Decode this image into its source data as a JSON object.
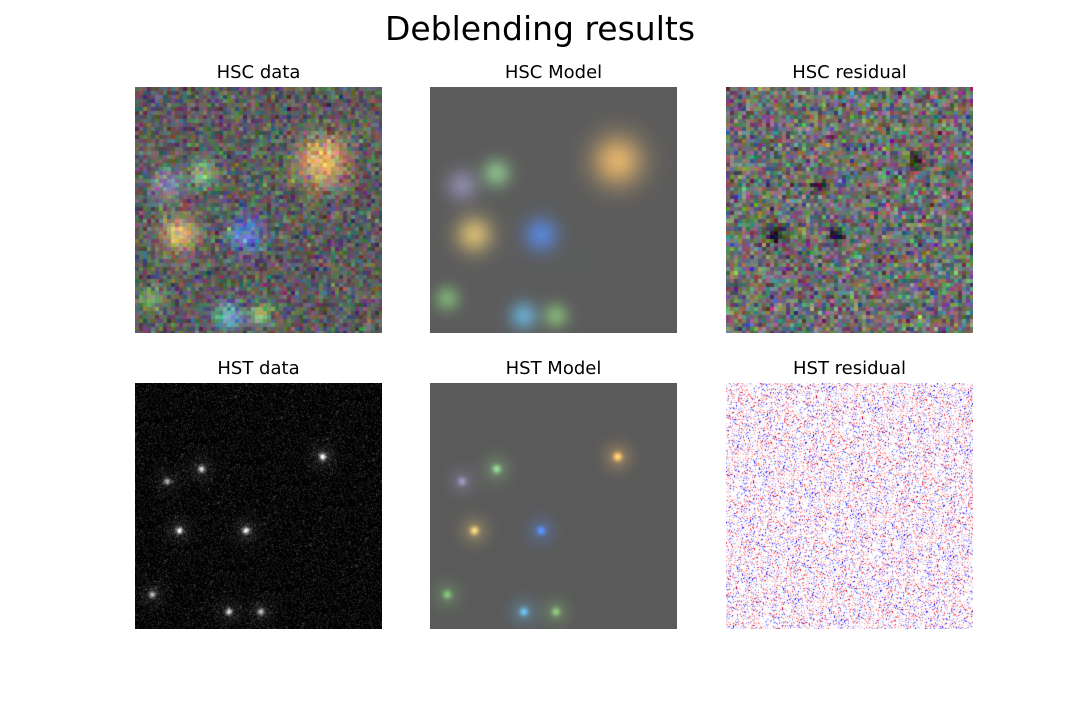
{
  "figure": {
    "title": "Deblending results"
  },
  "panels": [
    {
      "id": "hsc-data",
      "title": "HSC data"
    },
    {
      "id": "hsc-model",
      "title": "HSC Model"
    },
    {
      "id": "hsc-resid",
      "title": "HSC residual"
    },
    {
      "id": "hst-data",
      "title": "HST data"
    },
    {
      "id": "hst-model",
      "title": "HST Model"
    },
    {
      "id": "hst-resid",
      "title": "HST residual"
    }
  ],
  "colors": {
    "hsc_background": "#5c5c5c",
    "hst_data_background": "#000000",
    "hst_model_background": "#5a5a5a",
    "residual_positive": "#ff0000",
    "residual_negative": "#0000ff",
    "residual_zero": "#ffffff"
  }
}
